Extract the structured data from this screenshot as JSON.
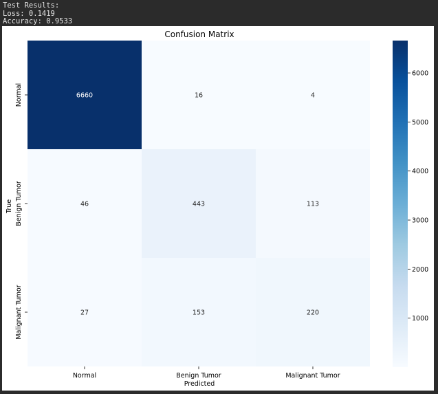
{
  "console": {
    "heading": "Test Results:",
    "loss": "Loss: 0.1419",
    "accuracy": "Accuracy: 0.9533"
  },
  "chart_data": {
    "type": "heatmap",
    "title": "Confusion Matrix",
    "xlabel": "Predicted",
    "ylabel": "True",
    "x_categories": [
      "Normal",
      "Benign Tumor",
      "Malignant Tumor"
    ],
    "y_categories": [
      "Normal",
      "Benign Tumor",
      "Malignant Tumor"
    ],
    "values": [
      [
        6660,
        16,
        4
      ],
      [
        46,
        443,
        113
      ],
      [
        27,
        153,
        220
      ]
    ],
    "colormap": "Blues",
    "color_range": [
      0,
      6660
    ],
    "colorbar_ticks": [
      1000,
      2000,
      3000,
      4000,
      5000,
      6000
    ],
    "colors": {
      "low": "#f7fbff",
      "high": "#08306b"
    }
  }
}
